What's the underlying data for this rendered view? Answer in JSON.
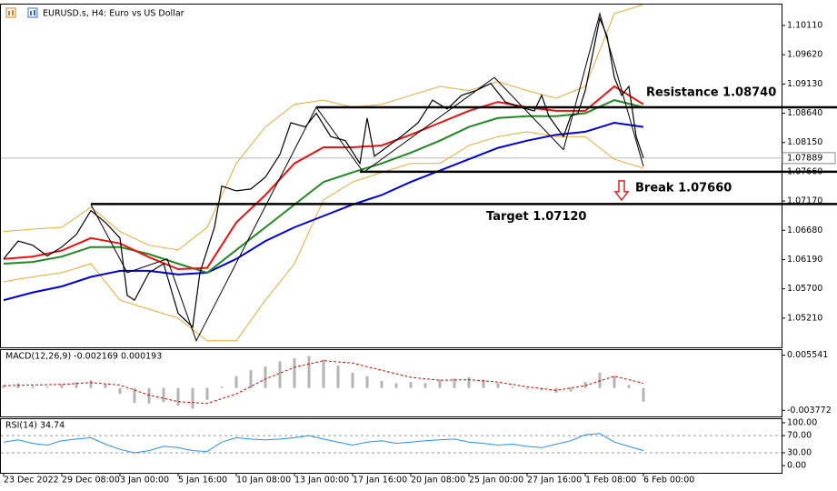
{
  "chart_data": [
    {
      "type": "line",
      "title": "EURUSD.s, H4: Euro vs US Dollar",
      "xlim": [
        0,
        214
      ],
      "xticks": [
        {
          "value": 0,
          "label": "23 Dec 2022"
        },
        {
          "value": 16,
          "label": "29 Dec 08:00"
        },
        {
          "value": 32,
          "label": "3 Jan 00:00"
        },
        {
          "value": 48,
          "label": "5 Jan 16:00"
        },
        {
          "value": 64,
          "label": "10 Jan 08:00"
        },
        {
          "value": 80,
          "label": "13 Jan 00:00"
        },
        {
          "value": 96,
          "label": "17 Jan 16:00"
        },
        {
          "value": 112,
          "label": "20 Jan 08:00"
        },
        {
          "value": 128,
          "label": "25 Jan 00:00"
        },
        {
          "value": 144,
          "label": "27 Jan 16:00"
        },
        {
          "value": 160,
          "label": "1 Feb 08:00"
        },
        {
          "value": 176,
          "label": "6 Feb 00:00"
        }
      ],
      "ylim": [
        1.0472,
        1.1046
      ],
      "yticks": [
        {
          "value": 1.1011,
          "label": "1.10110"
        },
        {
          "value": 1.0962,
          "label": "1.09620"
        },
        {
          "value": 1.0913,
          "label": "1.09130"
        },
        {
          "value": 1.0864,
          "label": "1.08640"
        },
        {
          "value": 1.0815,
          "label": "1.08150"
        },
        {
          "value": 1.0766,
          "label": "1.07660"
        },
        {
          "value": 1.0717,
          "label": "1.07170"
        },
        {
          "value": 1.0668,
          "label": "1.06680"
        },
        {
          "value": 1.0619,
          "label": "1.06190"
        },
        {
          "value": 1.057,
          "label": "1.05700"
        },
        {
          "value": 1.0521,
          "label": "1.05210"
        }
      ],
      "last_price": 1.07889,
      "series": [
        {
          "color": "#f0a830",
          "width": 1,
          "x": [
            0,
            8,
            16,
            24,
            32,
            40,
            48,
            56,
            64,
            72,
            80,
            88,
            96,
            104,
            112,
            120,
            128,
            136,
            144,
            152,
            160,
            168,
            176
          ],
          "values": [
            1.0666,
            1.067,
            1.0673,
            1.0707,
            1.0666,
            1.0643,
            1.0635,
            1.0673,
            1.078,
            1.0841,
            1.0879,
            1.0886,
            1.0874,
            1.0879,
            1.0894,
            1.0909,
            1.0902,
            1.0917,
            1.0902,
            1.0889,
            1.0909,
            1.1031,
            1.1046
          ]
        },
        {
          "color": "#f0a830",
          "width": 1,
          "x": [
            0,
            8,
            16,
            24,
            32,
            40,
            48,
            56,
            64,
            72,
            80,
            88,
            96,
            104,
            112,
            120,
            128,
            136,
            144,
            152,
            160,
            168,
            176
          ],
          "values": [
            1.0582,
            1.059,
            1.0597,
            1.0612,
            1.0551,
            1.0536,
            1.0521,
            1.0483,
            1.0483,
            1.0551,
            1.0612,
            1.0719,
            1.0749,
            1.0765,
            1.078,
            1.078,
            1.081,
            1.0825,
            1.0833,
            1.0825,
            1.0825,
            1.0787,
            1.0772
          ]
        },
        {
          "color": "#0000dd",
          "width": 2,
          "x": [
            0,
            8,
            16,
            24,
            32,
            40,
            48,
            56,
            64,
            72,
            80,
            88,
            96,
            104,
            112,
            120,
            128,
            136,
            144,
            152,
            160,
            168,
            176
          ],
          "values": [
            1.0551,
            1.0564,
            1.0574,
            1.059,
            1.06,
            1.06,
            1.0594,
            1.0597,
            1.062,
            1.065,
            1.0673,
            1.0692,
            1.0711,
            1.0727,
            1.0749,
            1.0768,
            1.0787,
            1.0806,
            1.0818,
            1.0828,
            1.0833,
            1.0848,
            1.0841
          ]
        },
        {
          "color": "#1f8a1f",
          "width": 2,
          "x": [
            0,
            8,
            16,
            24,
            32,
            40,
            48,
            56,
            64,
            72,
            80,
            88,
            96,
            104,
            112,
            120,
            128,
            136,
            144,
            152,
            160,
            168,
            176
          ],
          "values": [
            1.0612,
            1.0615,
            1.0624,
            1.064,
            1.064,
            1.0628,
            1.0612,
            1.0597,
            1.0635,
            1.0673,
            1.0711,
            1.0749,
            1.0765,
            1.078,
            1.0798,
            1.0818,
            1.0841,
            1.0856,
            1.0859,
            1.0859,
            1.0864,
            1.0886,
            1.0874
          ]
        },
        {
          "color": "#ee1111",
          "width": 2,
          "x": [
            0,
            8,
            16,
            24,
            32,
            40,
            48,
            56,
            64,
            72,
            80,
            88,
            96,
            104,
            112,
            120,
            128,
            136,
            144,
            152,
            160,
            168,
            176
          ],
          "values": [
            1.062,
            1.0624,
            1.0634,
            1.0655,
            1.0646,
            1.0623,
            1.0603,
            1.0605,
            1.0681,
            1.0727,
            1.078,
            1.0807,
            1.0807,
            1.081,
            1.0828,
            1.0848,
            1.0868,
            1.0883,
            1.0874,
            1.0868,
            1.0868,
            1.0909,
            1.0879
          ]
        },
        {
          "color": "#000000",
          "width": 1.2,
          "x": [
            0,
            4,
            8,
            12,
            16,
            20,
            24,
            28,
            32,
            34,
            36,
            40,
            44,
            48,
            52,
            54,
            58,
            60,
            64,
            68,
            72,
            76,
            79,
            83,
            86,
            90,
            94,
            98,
            100,
            102,
            106,
            110,
            114,
            118,
            122,
            126,
            130,
            134,
            138,
            142,
            146,
            148,
            150,
            154,
            156,
            158,
            160,
            162,
            164,
            166,
            168,
            170,
            172,
            174,
            176
          ],
          "values": [
            1.062,
            1.065,
            1.0643,
            1.0625,
            1.064,
            1.0661,
            1.0701,
            1.0681,
            1.0655,
            1.0559,
            1.0551,
            1.0597,
            1.0612,
            1.0529,
            1.0506,
            1.0597,
            1.0673,
            1.0742,
            1.0734,
            1.0737,
            1.0757,
            1.0795,
            1.0848,
            1.0841,
            1.0864,
            1.0825,
            1.0818,
            1.078,
            1.0856,
            1.0792,
            1.081,
            1.0828,
            1.0848,
            1.0886,
            1.0871,
            1.0894,
            1.0902,
            1.0914,
            1.0883,
            1.0874,
            1.0868,
            1.0894,
            1.0859,
            1.0825,
            1.0859,
            1.0864,
            1.0902,
            1.0962,
            1.1023,
            1.0993,
            1.0924,
            1.0894,
            1.0909,
            1.0825,
            1.0789
          ]
        },
        {
          "color": "#000000",
          "width": 1,
          "x": [
            24,
            34,
            45,
            53,
            86,
            99,
            135,
            154,
            164,
            176
          ],
          "values": [
            1.0711,
            1.0597,
            1.062,
            1.0483,
            1.0874,
            1.0765,
            1.0924,
            1.0803,
            1.1031,
            1.0775
          ]
        }
      ],
      "annotations": [
        {
          "text": "Resistance 1.08740",
          "value": 1.0874,
          "x_start": 86
        },
        {
          "text": "Break 1.07660",
          "value": 1.0766,
          "x_start": 98
        },
        {
          "text": "Target 1.07120",
          "value": 1.0712,
          "x_start": 24
        }
      ]
    },
    {
      "type": "bar",
      "title": "MACD(12,26,9) -0.002169 0.000193",
      "ylim": [
        -0.0048,
        0.0064
      ],
      "yticks": [
        0.005541,
        -0.003772
      ],
      "series": [
        {
          "type": "bar",
          "color": "#b4b4b4",
          "x": [
            0,
            4,
            8,
            12,
            16,
            20,
            24,
            28,
            32,
            36,
            40,
            44,
            48,
            52,
            56,
            60,
            64,
            68,
            72,
            76,
            80,
            84,
            88,
            92,
            96,
            100,
            104,
            108,
            112,
            116,
            120,
            124,
            128,
            132,
            136,
            140,
            144,
            148,
            152,
            156,
            160,
            164,
            168,
            172,
            176
          ],
          "values": [
            0.0005,
            0.0008,
            0.0003,
            0.0002,
            0.0006,
            0.001,
            0.0013,
            0.0006,
            -0.001,
            -0.0025,
            -0.0026,
            -0.0024,
            -0.003,
            -0.0035,
            -0.002,
            0.0002,
            0.002,
            0.003,
            0.0036,
            0.0045,
            0.005,
            0.0054,
            0.0048,
            0.0038,
            0.0026,
            0.002,
            0.0012,
            0.0008,
            0.001,
            0.0008,
            0.0014,
            0.0016,
            0.0018,
            0.0014,
            0.0008,
            0.0002,
            -0.0002,
            -0.0004,
            -0.0008,
            -0.0006,
            0.001,
            0.0026,
            0.002,
            0.0005,
            -0.0023
          ]
        },
        {
          "type": "line",
          "dash": true,
          "color": "#dd0000",
          "x": [
            0,
            8,
            16,
            24,
            32,
            40,
            48,
            56,
            64,
            72,
            80,
            88,
            96,
            104,
            112,
            120,
            128,
            136,
            144,
            152,
            160,
            168,
            176
          ],
          "values": [
            0.0004,
            0.0005,
            0.0006,
            0.0009,
            0.0005,
            -0.0012,
            -0.0023,
            -0.0026,
            -0.001,
            0.0015,
            0.0035,
            0.0046,
            0.0042,
            0.003,
            0.0018,
            0.0013,
            0.0014,
            0.001,
            0.0002,
            -0.0004,
            0.0004,
            0.002,
            0.0008
          ]
        }
      ]
    },
    {
      "type": "line",
      "title": "RSI(14) 34.74",
      "ylim": [
        -16.7,
        108.3
      ],
      "yticks": [
        {
          "value": 100,
          "label": "100.00"
        },
        {
          "value": 70,
          "label": "70.00"
        },
        {
          "value": 30,
          "label": "30.00"
        },
        {
          "value": 0,
          "label": "0.00"
        }
      ],
      "levels": [
        70,
        30
      ],
      "series": [
        {
          "type": "line",
          "color": "#1e90ff",
          "x": [
            0,
            4,
            8,
            12,
            16,
            20,
            24,
            28,
            32,
            36,
            40,
            44,
            48,
            52,
            56,
            60,
            64,
            68,
            72,
            76,
            80,
            84,
            88,
            92,
            96,
            100,
            104,
            108,
            112,
            116,
            120,
            124,
            128,
            132,
            136,
            140,
            144,
            148,
            152,
            156,
            160,
            164,
            168,
            172,
            176
          ],
          "values": [
            55,
            60,
            52,
            48,
            58,
            62,
            65,
            50,
            38,
            30,
            35,
            45,
            42,
            35,
            33,
            55,
            65,
            62,
            60,
            62,
            65,
            70,
            62,
            55,
            48,
            55,
            58,
            52,
            55,
            58,
            60,
            62,
            55,
            52,
            48,
            50,
            45,
            42,
            50,
            58,
            72,
            75,
            55,
            45,
            35
          ]
        }
      ]
    }
  ]
}
